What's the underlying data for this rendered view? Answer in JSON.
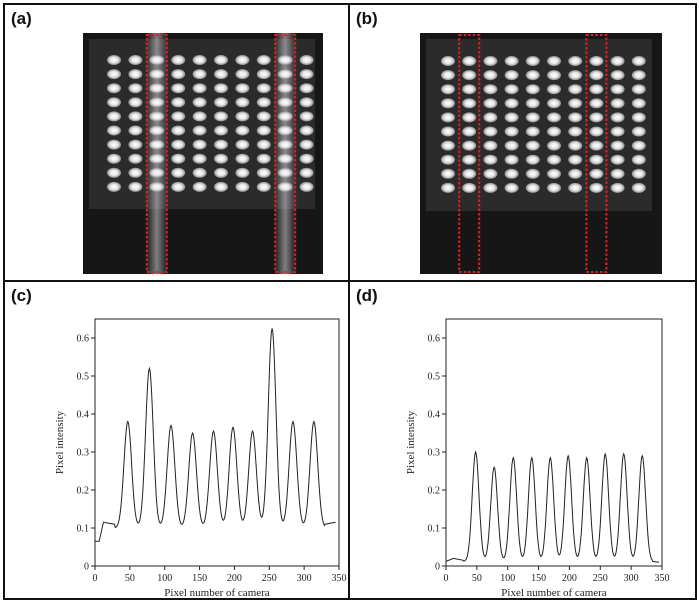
{
  "panels": {
    "a": {
      "label": "(a)"
    },
    "b": {
      "label": "(b)"
    },
    "c": {
      "label": "(c)"
    },
    "d": {
      "label": "(d)"
    }
  },
  "image_panels": {
    "grid": {
      "rows": 10,
      "cols": 10
    },
    "a": {
      "highlighted_columns": [
        2,
        8
      ]
    },
    "b": {
      "highlighted_columns": [
        1,
        7
      ]
    },
    "marker_color": "#e0201c"
  },
  "chart_data": [
    {
      "type": "line",
      "panel": "(c)",
      "xlabel": "Pixel number of camera",
      "ylabel": "Pixel intensity",
      "xlim": [
        0,
        350
      ],
      "ylim": [
        0,
        0.65
      ],
      "xticks": [
        "0",
        "50",
        "100",
        "150",
        "200",
        "250",
        "300",
        "350"
      ],
      "yticks": [
        "0",
        "0.1",
        "0.2",
        "0.3",
        "0.4",
        "0.5",
        "0.6"
      ],
      "series": [
        {
          "baseline": 0.1,
          "peaks": [
            {
              "x": 47,
              "y": 0.38
            },
            {
              "x": 78,
              "y": 0.52
            },
            {
              "x": 109,
              "y": 0.37
            },
            {
              "x": 140,
              "y": 0.35
            },
            {
              "x": 170,
              "y": 0.355
            },
            {
              "x": 198,
              "y": 0.365
            },
            {
              "x": 226,
              "y": 0.355
            },
            {
              "x": 254,
              "y": 0.625
            },
            {
              "x": 284,
              "y": 0.38
            },
            {
              "x": 314,
              "y": 0.38
            }
          ],
          "start": [
            [
              0,
              0.065
            ],
            [
              6,
              0.065
            ],
            [
              12,
              0.115
            ],
            [
              28,
              0.11
            ]
          ],
          "end": [
            [
              330,
              0.11
            ],
            [
              345,
              0.115
            ]
          ]
        }
      ]
    },
    {
      "type": "line",
      "panel": "(d)",
      "xlabel": "Pixel number of camera",
      "ylabel": "Pixel intensity",
      "xlim": [
        0,
        350
      ],
      "ylim": [
        0,
        0.65
      ],
      "xticks": [
        "0",
        "50",
        "100",
        "150",
        "200",
        "250",
        "300",
        "350"
      ],
      "yticks": [
        "0",
        "0.1",
        "0.2",
        "0.3",
        "0.4",
        "0.5",
        "0.6"
      ],
      "series": [
        {
          "baseline": 0.012,
          "peaks": [
            {
              "x": 48,
              "y": 0.3
            },
            {
              "x": 78,
              "y": 0.26
            },
            {
              "x": 109,
              "y": 0.285
            },
            {
              "x": 139,
              "y": 0.285
            },
            {
              "x": 169,
              "y": 0.285
            },
            {
              "x": 198,
              "y": 0.29
            },
            {
              "x": 228,
              "y": 0.285
            },
            {
              "x": 258,
              "y": 0.295
            },
            {
              "x": 288,
              "y": 0.295
            },
            {
              "x": 318,
              "y": 0.29
            }
          ],
          "start": [
            [
              0,
              0.012
            ],
            [
              12,
              0.02
            ],
            [
              28,
              0.015
            ]
          ],
          "end": [
            [
              335,
              0.012
            ],
            [
              345,
              0.01
            ]
          ]
        }
      ]
    }
  ]
}
